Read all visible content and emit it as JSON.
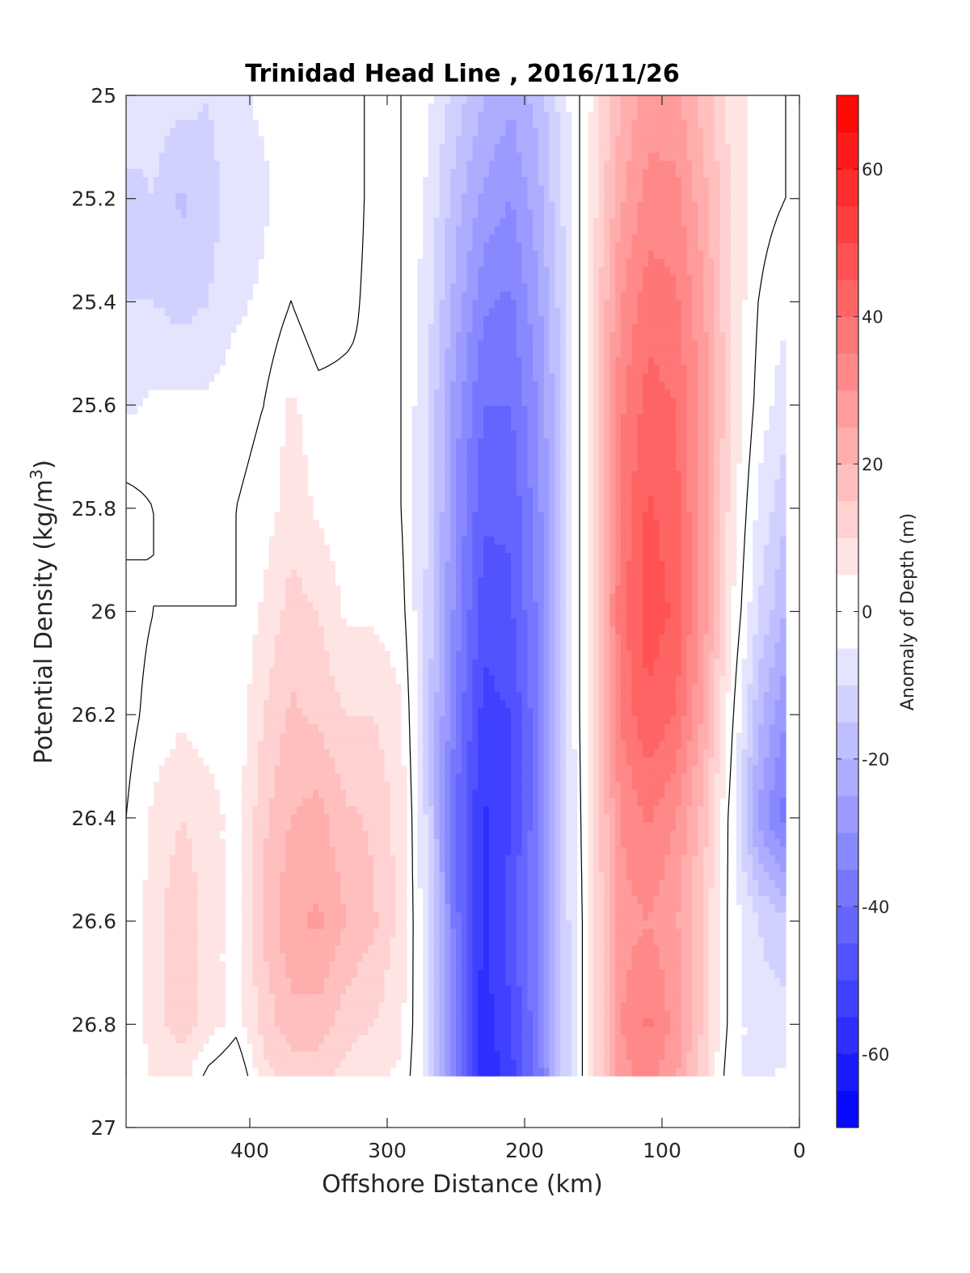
{
  "chart_data": {
    "type": "contourf",
    "title": "Trinidad Head Line , 2016/11/26",
    "xlabel": "Offshore Distance (km)",
    "ylabel_main": "Potential Density (kg/m",
    "ylabel_sup": "3",
    "ylabel_close": ")",
    "colorbar_label": "Anomaly of Depth (m)",
    "x_axis": {
      "lim": [
        490,
        0
      ],
      "reversed": true,
      "ticks": [
        400,
        300,
        200,
        100,
        0
      ]
    },
    "y_axis": {
      "lim": [
        25,
        27
      ],
      "reversed": true,
      "ticks": [
        25,
        25.2,
        25.4,
        25.6,
        25.8,
        26,
        26.2,
        26.4,
        26.6,
        26.8,
        27
      ]
    },
    "y_tick_labels": [
      "25",
      "25.2",
      "25.4",
      "25.6",
      "25.8",
      "26",
      "26.2",
      "26.4",
      "26.6",
      "26.8",
      "27"
    ],
    "x_tick_labels": [
      "400",
      "300",
      "200",
      "100",
      "0"
    ],
    "colorbar": {
      "lim": [
        -70,
        70
      ],
      "levels_step": 5,
      "ticks": [
        60,
        40,
        20,
        0,
        -20,
        -40,
        -60
      ],
      "tick_labels": [
        "60",
        "40",
        "20",
        "0",
        "-20",
        "-40",
        "-60"
      ],
      "negative_color": "#0000ff",
      "positive_color": "#ff0000",
      "zero_color": "#ffffff"
    },
    "data_extent": {
      "x": [
        490,
        10
      ],
      "y": [
        25,
        26.9
      ]
    },
    "grid_x_km": [
      490,
      470,
      450,
      430,
      410,
      390,
      370,
      350,
      330,
      310,
      290,
      270,
      250,
      230,
      210,
      190,
      170,
      150,
      130,
      110,
      90,
      70,
      50,
      30,
      10
    ],
    "grid_y_density": [
      25.0,
      25.2,
      25.4,
      25.6,
      25.8,
      26.0,
      26.2,
      26.4,
      26.6,
      26.8,
      26.9
    ],
    "anomaly_m": [
      [
        -6,
        -8,
        -8,
        -10,
        -6,
        -4,
        -2,
        -4,
        -4,
        2,
        0,
        -4,
        -12,
        -20,
        -24,
        -18,
        -6,
        6,
        20,
        28,
        26,
        18,
        8,
        2,
        0
      ],
      [
        -12,
        -10,
        -16,
        -12,
        -8,
        -6,
        -2,
        -4,
        -4,
        2,
        0,
        -6,
        -18,
        -26,
        -30,
        -22,
        -8,
        8,
        24,
        32,
        32,
        22,
        10,
        2,
        0
      ],
      [
        -10,
        -10,
        -12,
        -10,
        -6,
        -4,
        0,
        -4,
        -2,
        2,
        0,
        -8,
        -22,
        -34,
        -36,
        -26,
        -10,
        10,
        30,
        38,
        36,
        26,
        10,
        0,
        -4
      ],
      [
        -6,
        -4,
        -4,
        -4,
        -2,
        0,
        6,
        2,
        2,
        0,
        0,
        -10,
        -28,
        -40,
        -40,
        -30,
        -12,
        12,
        34,
        42,
        40,
        28,
        10,
        -2,
        -8
      ],
      [
        2,
        0,
        0,
        0,
        0,
        2,
        8,
        4,
        2,
        2,
        0,
        -10,
        -30,
        -44,
        -44,
        -32,
        -12,
        12,
        36,
        46,
        42,
        28,
        8,
        -6,
        -14
      ],
      [
        -2,
        0,
        0,
        0,
        0,
        6,
        12,
        10,
        4,
        4,
        2,
        -12,
        -32,
        -48,
        -46,
        -34,
        -12,
        12,
        38,
        48,
        44,
        28,
        6,
        -10,
        -20
      ],
      [
        -2,
        2,
        4,
        2,
        2,
        10,
        16,
        14,
        10,
        10,
        6,
        -14,
        -36,
        -52,
        -50,
        -36,
        -12,
        12,
        36,
        44,
        40,
        24,
        2,
        -18,
        -30
      ],
      [
        0,
        6,
        10,
        8,
        2,
        14,
        20,
        22,
        16,
        14,
        8,
        -12,
        -40,
        -56,
        -50,
        -36,
        -12,
        10,
        30,
        36,
        30,
        18,
        -2,
        -26,
        -38
      ],
      [
        0,
        8,
        14,
        8,
        2,
        16,
        24,
        26,
        20,
        16,
        8,
        -10,
        -38,
        -56,
        -48,
        -34,
        -12,
        8,
        28,
        30,
        26,
        14,
        -2,
        -10,
        -14
      ],
      [
        0,
        8,
        12,
        8,
        2,
        12,
        18,
        18,
        12,
        10,
        6,
        -8,
        -36,
        -58,
        -50,
        -36,
        -12,
        8,
        30,
        36,
        28,
        14,
        -2,
        -8,
        -8
      ],
      [
        0,
        6,
        8,
        -2,
        -6,
        8,
        12,
        12,
        8,
        6,
        4,
        -8,
        -36,
        -60,
        -52,
        -38,
        -12,
        8,
        28,
        32,
        26,
        12,
        -4,
        -6,
        -4
      ]
    ]
  }
}
